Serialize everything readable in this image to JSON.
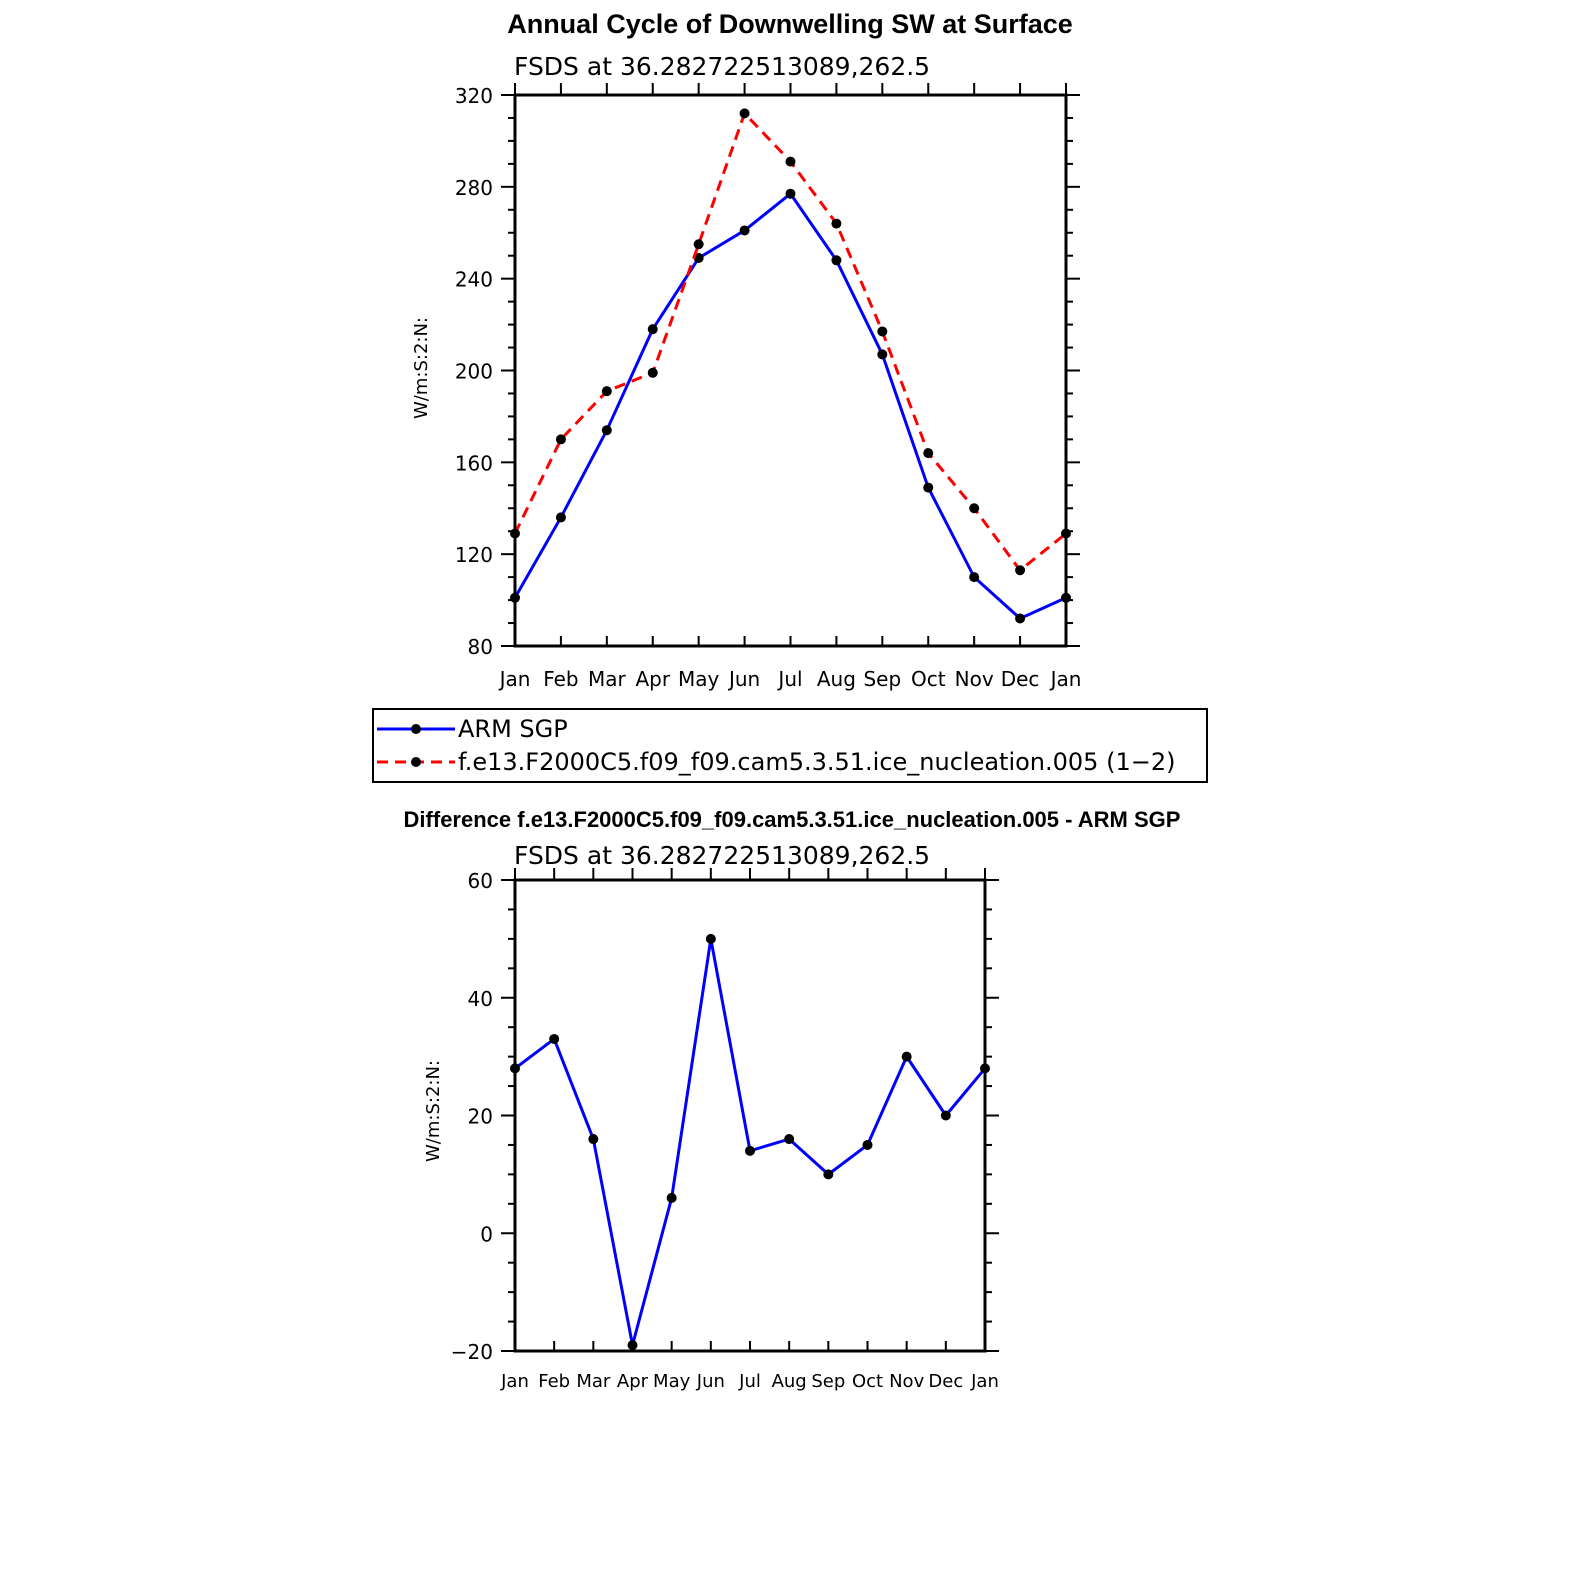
{
  "chart_data": [
    {
      "type": "line",
      "title": "Annual Cycle of Downwelling SW at Surface",
      "subtitle": "FSDS at 36.282722513089,262.5",
      "ylabel": "W/m:S:2:N:",
      "xlabel": "",
      "categories": [
        "Jan",
        "Feb",
        "Mar",
        "Apr",
        "May",
        "Jun",
        "Jul",
        "Aug",
        "Sep",
        "Oct",
        "Nov",
        "Dec",
        "Jan"
      ],
      "ylim": [
        80,
        320
      ],
      "yticks": [
        80,
        120,
        160,
        200,
        240,
        280,
        320
      ],
      "series": [
        {
          "name": "ARM SGP",
          "color": "#0000ff",
          "dash": "solid",
          "values": [
            101,
            136,
            174,
            218,
            249,
            261,
            277,
            248,
            207,
            149,
            110,
            92,
            101
          ]
        },
        {
          "name": "f.e13.F2000C5.f09_f09.cam5.3.51.ice_nucleation.005 (1−2)",
          "color": "#ff0000",
          "dash": "dashed",
          "values": [
            129,
            170,
            191,
            199,
            255,
            312,
            291,
            264,
            217,
            164,
            140,
            113,
            129
          ]
        }
      ],
      "grid": false,
      "legend": "bottom"
    },
    {
      "type": "line",
      "title": "Difference f.e13.F2000C5.f09_f09.cam5.3.51.ice_nucleation.005 - ARM SGP",
      "subtitle": "FSDS at 36.282722513089,262.5",
      "ylabel": "W/m:S:2:N:",
      "xlabel": "",
      "categories": [
        "Jan",
        "Feb",
        "Mar",
        "Apr",
        "May",
        "Jun",
        "Jul",
        "Aug",
        "Sep",
        "Oct",
        "Nov",
        "Dec",
        "Jan"
      ],
      "ylim": [
        -20,
        60
      ],
      "yticks": [
        -20,
        0,
        20,
        40,
        60
      ],
      "series": [
        {
          "color": "#0000ff",
          "dash": "solid",
          "values": [
            28,
            33,
            16,
            -19,
            6,
            50,
            14,
            16,
            10,
            15,
            30,
            20,
            28
          ]
        }
      ],
      "grid": false
    }
  ]
}
